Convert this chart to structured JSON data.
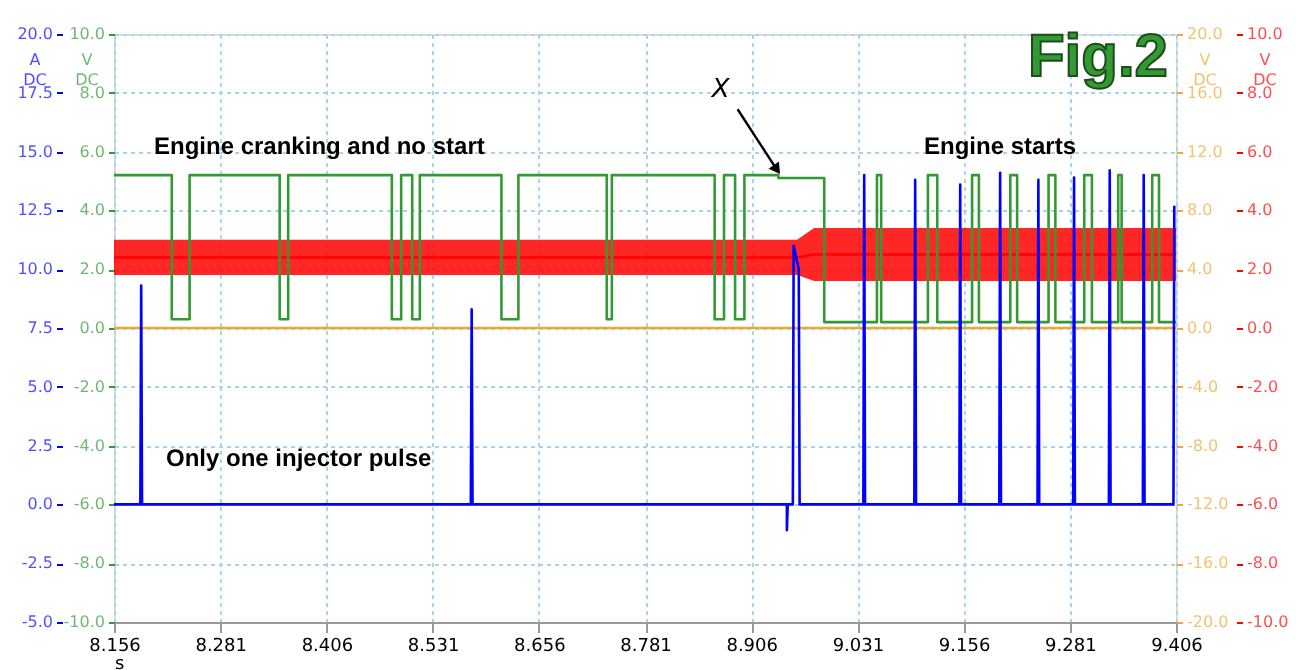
{
  "chart_data": {
    "type": "line",
    "title": "Fig.2",
    "xlabel": "s",
    "ylabel": "A DC",
    "y2label": "V DC",
    "y3label": "V DC",
    "xlim": [
      8.156,
      9.406
    ],
    "xticks": [
      8.156,
      8.281,
      8.406,
      8.531,
      8.656,
      8.781,
      8.906,
      9.031,
      9.156,
      9.281,
      9.406
    ],
    "ylim": [
      -5,
      20
    ],
    "yticks": [
      {
        "value": -5,
        "label": "-5.0"
      },
      {
        "value": -2.5,
        "label": "-2.5"
      },
      {
        "value": 0,
        "label": "0.0"
      },
      {
        "value": 2.5,
        "label": "2.5"
      },
      {
        "value": 5,
        "label": "5.0"
      },
      {
        "value": 7.5,
        "label": "7.5"
      },
      {
        "value": 10,
        "label": "10.0"
      },
      {
        "value": 12.5,
        "label": "12.5"
      },
      {
        "value": 15,
        "label": "15.0"
      },
      {
        "value": 17.5,
        "label": "17.5"
      },
      {
        "value": 20,
        "label": "20.0"
      }
    ],
    "y2lim": [
      -10,
      10
    ],
    "y2ticks": [
      {
        "value": -10,
        "label": "-10.0"
      },
      {
        "value": -8,
        "label": "-8.0"
      },
      {
        "value": -6,
        "label": "-6.0"
      },
      {
        "value": -4,
        "label": "-4.0"
      },
      {
        "value": -2,
        "label": "-2.0"
      },
      {
        "value": 0,
        "label": "0.0"
      },
      {
        "value": 2,
        "label": "2.0"
      },
      {
        "value": 4,
        "label": "4.0"
      },
      {
        "value": 6,
        "label": "6.0"
      },
      {
        "value": 8,
        "label": "8.0"
      },
      {
        "value": 10,
        "label": "10.0"
      }
    ],
    "y3lim": [
      -20,
      20
    ],
    "y3ticks": [
      {
        "value": -20,
        "label": "-20.0"
      },
      {
        "value": -16,
        "label": "-16.0"
      },
      {
        "value": -12,
        "label": "-12.0"
      },
      {
        "value": -8,
        "label": "-8.0"
      },
      {
        "value": -4,
        "label": "-4.0"
      },
      {
        "value": 0,
        "label": "0.0"
      },
      {
        "value": 4,
        "label": "4.0"
      },
      {
        "value": 8,
        "label": "8.0"
      },
      {
        "value": 12,
        "label": "12.0"
      },
      {
        "value": 16,
        "label": "16.0"
      },
      {
        "value": 20,
        "label": "20.0"
      }
    ],
    "grid": true,
    "line_style": "solid",
    "marker": "none",
    "series": [
      {
        "color": "#f0a830",
        "axis": "y3",
        "x": [
          8.156,
          9.406
        ],
        "values": [
          0,
          0
        ]
      },
      {
        "color": "#ff0000",
        "axis": "y2",
        "x": [
          8.156,
          8.96,
          8.98,
          9.406
        ],
        "values": [
          2.4,
          2.4,
          2.5,
          2.5
        ],
        "lower": [
          1.8,
          1.8,
          1.6,
          1.6
        ],
        "upper": [
          3.0,
          3.0,
          3.4,
          3.4
        ]
      },
      {
        "color": "#339933",
        "axis": "y2",
        "x": [
          8.156,
          8.224,
          8.224,
          8.245,
          8.245,
          8.351,
          8.351,
          8.361,
          8.361,
          8.483,
          8.483,
          8.494,
          8.494,
          8.507,
          8.507,
          8.516,
          8.516,
          8.612,
          8.612,
          8.632,
          8.632,
          8.736,
          8.736,
          8.742,
          8.742,
          8.863,
          8.863,
          8.874,
          8.874,
          8.887,
          8.887,
          8.898,
          8.898,
          8.938,
          8.938,
          8.992,
          8.992,
          9.054,
          9.054,
          9.059,
          9.059,
          9.114,
          9.114,
          9.125,
          9.125,
          9.166,
          9.166,
          9.174,
          9.174,
          9.211,
          9.211,
          9.219,
          9.219,
          9.256,
          9.256,
          9.264,
          9.264,
          9.298,
          9.298,
          9.307,
          9.307,
          9.338,
          9.338,
          9.342,
          9.342,
          9.378,
          9.378,
          9.386,
          9.386,
          9.406
        ],
        "values": [
          5.2,
          5.2,
          0.3,
          0.3,
          5.2,
          5.2,
          0.3,
          0.3,
          5.2,
          5.2,
          0.3,
          0.3,
          5.2,
          5.2,
          0.3,
          0.3,
          5.2,
          5.2,
          0.3,
          0.3,
          5.2,
          5.2,
          0.3,
          0.3,
          5.2,
          5.2,
          0.3,
          0.3,
          5.2,
          5.2,
          0.3,
          0.3,
          5.2,
          5.2,
          5.1,
          5.1,
          0.2,
          0.2,
          5.2,
          5.2,
          0.2,
          0.2,
          5.2,
          5.2,
          0.2,
          0.2,
          5.2,
          5.2,
          0.2,
          0.2,
          5.2,
          5.2,
          0.2,
          0.2,
          5.2,
          5.2,
          0.2,
          0.2,
          5.2,
          5.2,
          0.2,
          0.2,
          5.2,
          5.2,
          0.2,
          0.2,
          5.2,
          5.2,
          0.2,
          0.2
        ]
      },
      {
        "color": "#0000ff",
        "x": [
          8.156,
          8.187,
          8.188,
          8.189,
          8.576,
          8.577,
          8.578,
          8.948,
          8.948,
          8.949,
          8.955,
          8.956,
          8.962,
          8.963,
          9.038,
          9.039,
          9.04,
          9.098,
          9.099,
          9.1,
          9.151,
          9.152,
          9.153,
          9.198,
          9.199,
          9.2,
          9.243,
          9.244,
          9.245,
          9.285,
          9.286,
          9.287,
          9.327,
          9.328,
          9.329,
          9.367,
          9.368,
          9.369,
          9.403,
          9.404
        ],
        "values": [
          0,
          0,
          9.3,
          0,
          0,
          8.3,
          0,
          0,
          -1.1,
          0,
          0,
          11.0,
          10.0,
          0,
          0,
          14.0,
          0,
          0,
          13.8,
          0,
          0,
          13.6,
          0,
          0,
          14.1,
          0,
          0,
          13.8,
          0,
          0,
          13.9,
          0,
          0,
          14.2,
          0,
          0,
          14.0,
          0,
          0,
          12.7
        ]
      }
    ],
    "annotations": [
      "Engine cranking and no start",
      "Engine starts",
      "Only one injector pulse",
      {
        "text": "X",
        "x": 8.935,
        "y": 14.3
      }
    ]
  }
}
